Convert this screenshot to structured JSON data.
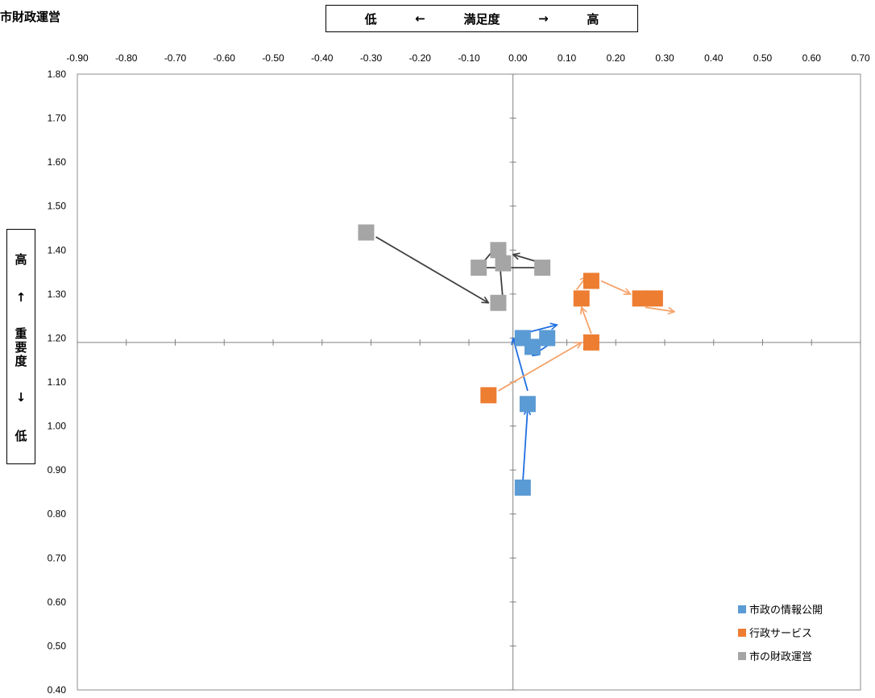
{
  "corner_title": "市財政運営",
  "x_axis_box": {
    "low": "低",
    "left_arrow": "←",
    "label": "満足度",
    "right_arrow": "→",
    "high": "高"
  },
  "y_axis_box": {
    "high": "高",
    "up_arrow": "↑",
    "label": "重要度",
    "down_arrow": "↓",
    "low": "低"
  },
  "chart_data": {
    "type": "scatter",
    "title": "",
    "xlabel": "満足度",
    "ylabel": "重要度",
    "xlim": [
      -0.9,
      0.7
    ],
    "ylim": [
      0.4,
      1.8
    ],
    "x_ticks": [
      -0.9,
      -0.8,
      -0.7,
      -0.6,
      -0.5,
      -0.4,
      -0.3,
      -0.2,
      -0.1,
      0.0,
      0.1,
      0.2,
      0.3,
      0.4,
      0.5,
      0.6,
      0.7
    ],
    "x_tick_labels": [
      "-0.90",
      "-0.80",
      "-0.70",
      "-0.60",
      "-0.50",
      "-0.40",
      "-0.30",
      "-0.20",
      "-0.10",
      "0.00",
      "0.10",
      "0.20",
      "0.30",
      "0.40",
      "0.50",
      "0.60",
      "0.70"
    ],
    "y_ticks": [
      0.4,
      0.5,
      0.6,
      0.7,
      0.8,
      0.9,
      1.0,
      1.1,
      1.2,
      1.3,
      1.4,
      1.5,
      1.6,
      1.7,
      1.8
    ],
    "y_tick_labels": [
      "0.40",
      "0.50",
      "0.60",
      "0.70",
      "0.80",
      "0.90",
      "1.00",
      "1.10",
      "1.20",
      "1.30",
      "1.40",
      "1.50",
      "1.60",
      "1.70",
      "1.80"
    ],
    "axis_cross": {
      "x": -0.01,
      "y": 1.19
    },
    "legend_position": "bottom-right",
    "series": [
      {
        "name": "市政の情報公開",
        "color": "#5b9bd5",
        "arrow_color": "#1f6fe0",
        "points": [
          [
            0.01,
            0.86
          ],
          [
            0.02,
            1.05
          ],
          [
            0.01,
            1.2
          ],
          [
            0.03,
            1.18
          ],
          [
            0.06,
            1.2
          ]
        ],
        "arrows": [
          [
            [
              0.01,
              0.87
            ],
            [
              0.02,
              1.04
            ]
          ],
          [
            [
              0.02,
              1.08
            ],
            [
              -0.01,
              1.2
            ]
          ],
          [
            [
              0.01,
              1.21
            ],
            [
              0.08,
              1.23
            ]
          ],
          [
            [
              0.07,
              1.19
            ],
            [
              0.03,
              1.16
            ]
          ]
        ]
      },
      {
        "name": "行政サービス",
        "color": "#ed7d31",
        "arrow_color": "#f4a36a",
        "points": [
          [
            -0.06,
            1.07
          ],
          [
            0.15,
            1.19
          ],
          [
            0.13,
            1.29
          ],
          [
            0.15,
            1.33
          ],
          [
            0.25,
            1.29
          ],
          [
            0.28,
            1.29
          ]
        ],
        "arrows": [
          [
            [
              -0.04,
              1.08
            ],
            [
              0.13,
              1.19
            ]
          ],
          [
            [
              0.15,
              1.21
            ],
            [
              0.13,
              1.27
            ]
          ],
          [
            [
              0.12,
              1.31
            ],
            [
              0.14,
              1.34
            ]
          ],
          [
            [
              0.17,
              1.33
            ],
            [
              0.23,
              1.3
            ]
          ],
          [
            [
              0.26,
              1.27
            ],
            [
              0.32,
              1.26
            ]
          ]
        ]
      },
      {
        "name": "市の財政運営",
        "color": "#a5a5a5",
        "arrow_color": "#404040",
        "points": [
          [
            -0.31,
            1.44
          ],
          [
            -0.04,
            1.28
          ],
          [
            -0.04,
            1.4
          ],
          [
            -0.08,
            1.36
          ],
          [
            -0.03,
            1.37
          ],
          [
            0.05,
            1.36
          ]
        ],
        "arrows": [
          [
            [
              -0.29,
              1.43
            ],
            [
              -0.06,
              1.28
            ]
          ],
          [
            [
              -0.03,
              1.28
            ],
            [
              -0.04,
              1.41
            ]
          ],
          [
            [
              -0.05,
              1.4
            ],
            [
              -0.08,
              1.36
            ]
          ],
          [
            [
              -0.08,
              1.36
            ],
            [
              0.06,
              1.36
            ]
          ],
          [
            [
              0.05,
              1.37
            ],
            [
              -0.01,
              1.39
            ]
          ]
        ]
      }
    ]
  }
}
